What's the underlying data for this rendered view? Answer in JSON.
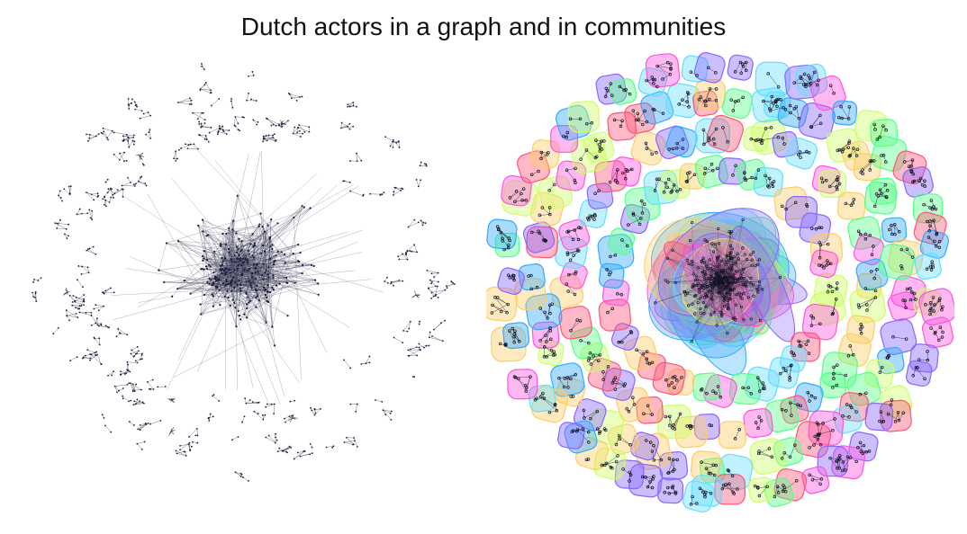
{
  "title": "Dutch actors in a graph and in communities",
  "panels": [
    {
      "name": "actor-network-graph",
      "icon": "network-graph-icon"
    },
    {
      "name": "community-overlay-graph",
      "icon": "community-blobs-icon"
    }
  ],
  "colors": {
    "edge": "#3a3a55",
    "node": "#1a1a3a",
    "community_palette": [
      "#ff55dd",
      "#66ddff",
      "#55ff88",
      "#8866ff",
      "#ff5577",
      "#ccff66",
      "#ffcc66",
      "#33aaff"
    ]
  }
}
